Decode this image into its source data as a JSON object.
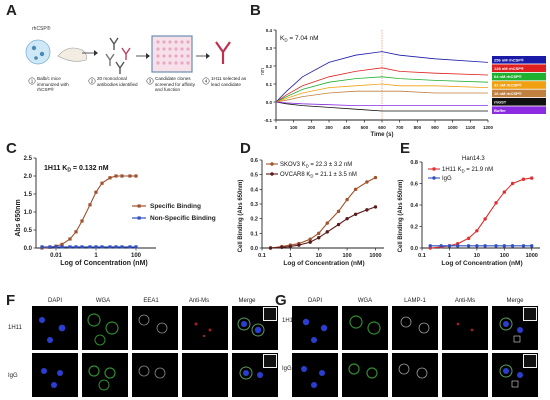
{
  "labels": {
    "A": "A",
    "B": "B",
    "C": "C",
    "D": "D",
    "E": "E",
    "F": "F",
    "G": "G"
  },
  "panelA": {
    "header": "rhCSP®",
    "steps": [
      {
        "num": "1",
        "text": "Balb/c mice immunized with rhCSP®"
      },
      {
        "num": "2",
        "text": "20 monoclonal antibodies identified"
      },
      {
        "num": "3",
        "text": "Candidate clones screened for affinity and function"
      },
      {
        "num": "4",
        "text": "1H11 selected as lead candidate"
      }
    ]
  },
  "panelB": {
    "kd": "K",
    "kd_sub": "D",
    "kd_value": " = 7.04 nM",
    "xlabel": "Time (s)",
    "ylabel": "nm",
    "xticks": [
      "0",
      "100",
      "200",
      "300",
      "400",
      "500",
      "600",
      "700",
      "800",
      "900",
      "1000",
      "1100",
      "1200"
    ],
    "yticks": [
      "0.4",
      "0.3",
      "0.2",
      "0.1",
      "0.0",
      "-0.1"
    ],
    "legend": [
      {
        "label": "256 nM rhCSP®",
        "color": "#1a1aa6"
      },
      {
        "label": "128 nM rhCSP®",
        "color": "#e02020"
      },
      {
        "label": "64 nM rhCSP®",
        "color": "#20b030"
      },
      {
        "label": "32 nM rhCSP®",
        "color": "#f0a010"
      },
      {
        "label": "16 nM rhCSP®",
        "color": "#c08040"
      },
      {
        "label": "rhGST",
        "color": "#111111"
      },
      {
        "label": "Buffer",
        "color": "#8a2be2"
      }
    ]
  },
  "panelC": {
    "annotation": "1H11 K",
    "annotation_sub": "D",
    "annotation_value": " = 0.132 nM",
    "xlabel": "Log of Concentration (nM)",
    "ylabel": "Abs 650nm",
    "xticks": [
      "0.01",
      "1",
      "100"
    ],
    "yticks": [
      "0.0",
      "0.5",
      "1.0",
      "1.5",
      "2.0",
      "2.5"
    ],
    "legend": [
      {
        "label": "Specific Binding",
        "color": "#a0522d"
      },
      {
        "label": "Non-Specific Binding",
        "color": "#3050c0"
      }
    ]
  },
  "panelD": {
    "legend": [
      {
        "label": "SKOV3",
        "kd": "K",
        "sub": "D",
        "value": " = 22.3 ± 3.2 nM",
        "color": "#a0522d"
      },
      {
        "label": "OVCAR8",
        "kd": "K",
        "sub": "D",
        "value": " = 21.1 ± 3.5 nM",
        "color": "#5a1a1a"
      }
    ],
    "xlabel": "Log of Concentration (nM)",
    "ylabel": "Cell Binding (Abs 650nm)",
    "xticks": [
      "0.1",
      "1",
      "10",
      "100",
      "1000"
    ],
    "yticks": [
      "0.0",
      "0.1",
      "0.2",
      "0.3",
      "0.4",
      "0.5",
      "0.6"
    ]
  },
  "panelE": {
    "title": "Han14.3",
    "legend": [
      {
        "label": "1H11 K",
        "sub": "D",
        "value": " = 21.9 nM",
        "color": "#e03030"
      },
      {
        "label": "IgG",
        "sub": "",
        "value": "",
        "color": "#3050c0"
      }
    ],
    "xlabel": "Log of Concentration (nM)",
    "ylabel": "Cell Binding (Abs 650nm)",
    "xticks": [
      "0.1",
      "1",
      "10",
      "100",
      "1000"
    ],
    "yticks": [
      "0.0",
      "0.2",
      "0.4",
      "0.6",
      "0.8"
    ]
  },
  "panelF": {
    "channels": [
      "DAPI",
      "WGA",
      "EEA1",
      "Anti-Ms",
      "Merge"
    ],
    "rows": [
      "1H11",
      "IgG"
    ]
  },
  "panelG": {
    "channels": [
      "DAPI",
      "WGA",
      "LAMP-1",
      "Anti-Ms",
      "Merge"
    ],
    "rows": [
      "1H11",
      "IgG"
    ]
  },
  "chart_data": [
    {
      "type": "line",
      "title": "",
      "xlabel": "Time (s)",
      "ylabel": "nm",
      "xlim": [
        0,
        1200
      ],
      "ylim": [
        -0.1,
        0.4
      ],
      "series": [
        {
          "name": "256 nM rhCSP®",
          "x": [
            0,
            60,
            150,
            300,
            450,
            600,
            700,
            900,
            1200
          ],
          "y": [
            0.0,
            0.06,
            0.14,
            0.22,
            0.26,
            0.28,
            0.26,
            0.24,
            0.22
          ]
        },
        {
          "name": "128 nM rhCSP®",
          "x": [
            0,
            60,
            150,
            300,
            450,
            600,
            700,
            900,
            1200
          ],
          "y": [
            0.0,
            0.04,
            0.09,
            0.14,
            0.17,
            0.19,
            0.17,
            0.16,
            0.15
          ]
        },
        {
          "name": "64 nM rhCSP®",
          "x": [
            0,
            60,
            150,
            300,
            450,
            600,
            700,
            900,
            1200
          ],
          "y": [
            0.0,
            0.03,
            0.07,
            0.11,
            0.13,
            0.14,
            0.13,
            0.12,
            0.11
          ]
        },
        {
          "name": "32 nM rhCSP®",
          "x": [
            0,
            60,
            150,
            300,
            450,
            600,
            700,
            900,
            1200
          ],
          "y": [
            0.0,
            0.02,
            0.05,
            0.08,
            0.09,
            0.1,
            0.09,
            0.09,
            0.08
          ]
        },
        {
          "name": "16 nM rhCSP®",
          "x": [
            0,
            60,
            150,
            300,
            450,
            600,
            700,
            900,
            1200
          ],
          "y": [
            0.0,
            0.01,
            0.03,
            0.05,
            0.06,
            0.06,
            0.06,
            0.05,
            0.05
          ]
        },
        {
          "name": "rhGST",
          "x": [
            0,
            60,
            150,
            300,
            450,
            600,
            700,
            900,
            1200
          ],
          "y": [
            0.0,
            -0.01,
            -0.02,
            -0.03,
            -0.04,
            -0.05,
            -0.05,
            -0.05,
            -0.05
          ]
        },
        {
          "name": "Buffer",
          "x": [
            0,
            60,
            150,
            300,
            450,
            600,
            700,
            900,
            1200
          ],
          "y": [
            0.0,
            -0.005,
            -0.01,
            -0.015,
            -0.02,
            -0.02,
            -0.02,
            -0.02,
            -0.02
          ]
        }
      ]
    },
    {
      "type": "scatter",
      "title": "",
      "xlabel": "Log of Concentration (nM)",
      "ylabel": "Abs 650nm",
      "xscale": "log",
      "xlim": [
        0.001,
        1000
      ],
      "ylim": [
        0,
        2.5
      ],
      "series": [
        {
          "name": "Specific Binding",
          "x": [
            0.002,
            0.005,
            0.01,
            0.02,
            0.05,
            0.1,
            0.2,
            0.5,
            1,
            2,
            5,
            10,
            20,
            50,
            100
          ],
          "y": [
            0.0,
            0.02,
            0.05,
            0.1,
            0.25,
            0.45,
            0.75,
            1.2,
            1.55,
            1.8,
            1.95,
            2.0,
            2.0,
            2.0,
            2.0
          ]
        },
        {
          "name": "Non-Specific Binding",
          "x": [
            0.002,
            0.005,
            0.01,
            0.02,
            0.05,
            0.1,
            0.2,
            0.5,
            1,
            2,
            5,
            10,
            20,
            50,
            100
          ],
          "y": [
            0.03,
            0.03,
            0.03,
            0.03,
            0.03,
            0.03,
            0.03,
            0.03,
            0.03,
            0.03,
            0.03,
            0.03,
            0.03,
            0.03,
            0.03
          ]
        }
      ]
    },
    {
      "type": "scatter",
      "title": "",
      "xlabel": "Log of Concentration (nM)",
      "ylabel": "Cell Binding (Abs 650nm)",
      "xscale": "log",
      "xlim": [
        0.1,
        2000
      ],
      "ylim": [
        0,
        0.6
      ],
      "series": [
        {
          "name": "SKOV3",
          "x": [
            0.2,
            0.5,
            1,
            2,
            5,
            10,
            20,
            50,
            100,
            200,
            500,
            1000
          ],
          "y": [
            0.0,
            0.01,
            0.02,
            0.03,
            0.06,
            0.1,
            0.17,
            0.25,
            0.33,
            0.4,
            0.45,
            0.48
          ]
        },
        {
          "name": "OVCAR8",
          "x": [
            0.2,
            0.5,
            1,
            2,
            5,
            10,
            20,
            50,
            100,
            200,
            500,
            1000
          ],
          "y": [
            0.0,
            0.005,
            0.01,
            0.02,
            0.04,
            0.07,
            0.11,
            0.16,
            0.2,
            0.23,
            0.26,
            0.28
          ]
        }
      ]
    },
    {
      "type": "scatter",
      "title": "Han14.3",
      "xlabel": "Log of Concentration (nM)",
      "ylabel": "Cell Binding (Abs 650nm)",
      "xscale": "log",
      "xlim": [
        0.1,
        2000
      ],
      "ylim": [
        0,
        0.8
      ],
      "series": [
        {
          "name": "1H11",
          "x": [
            0.2,
            0.5,
            1,
            2,
            5,
            10,
            20,
            50,
            100,
            200,
            500,
            1000
          ],
          "y": [
            0.0,
            0.01,
            0.02,
            0.04,
            0.09,
            0.16,
            0.27,
            0.42,
            0.52,
            0.6,
            0.64,
            0.65
          ]
        },
        {
          "name": "IgG",
          "x": [
            0.2,
            0.5,
            1,
            2,
            5,
            10,
            20,
            50,
            100,
            200,
            500,
            1000
          ],
          "y": [
            0.02,
            0.02,
            0.02,
            0.02,
            0.02,
            0.02,
            0.02,
            0.02,
            0.02,
            0.02,
            0.02,
            0.02
          ]
        }
      ]
    }
  ]
}
